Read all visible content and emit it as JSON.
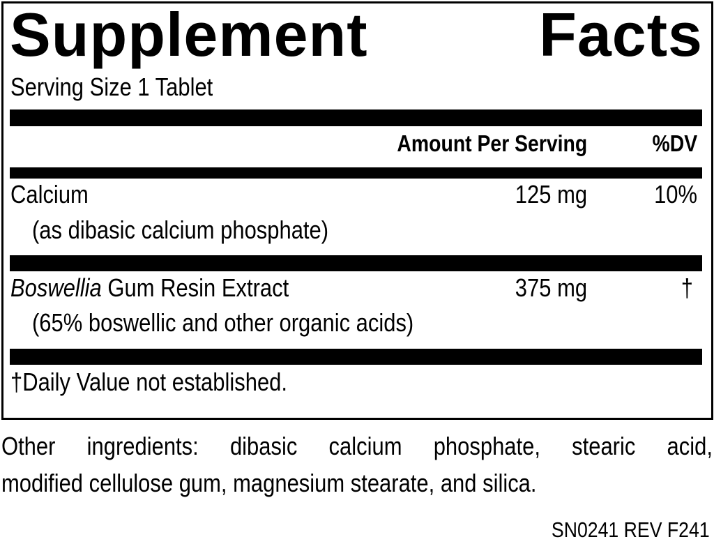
{
  "title": {
    "word1": "Supplement",
    "word2": "Facts"
  },
  "serving_size": "Serving Size 1 Tablet",
  "header": {
    "amount": "Amount Per Serving",
    "dv": "%DV"
  },
  "rows": [
    {
      "name": "Calcium",
      "detail": "(as dibasic calcium phosphate)",
      "amount": "125 mg",
      "dv": "10%"
    },
    {
      "name_italic": "Boswellia",
      "name_rest": " Gum Resin Extract",
      "detail": "(65% boswellic and other organic acids)",
      "amount": "375 mg",
      "dv": "†"
    }
  ],
  "footnote": "†Daily Value not established.",
  "other_ingredients": {
    "line1": "Other ingredients: dibasic calcium phosphate, stearic acid,",
    "line2": "modified cellulose gum, magnesium stearate, and silica."
  },
  "code": "SN0241 REV F241"
}
